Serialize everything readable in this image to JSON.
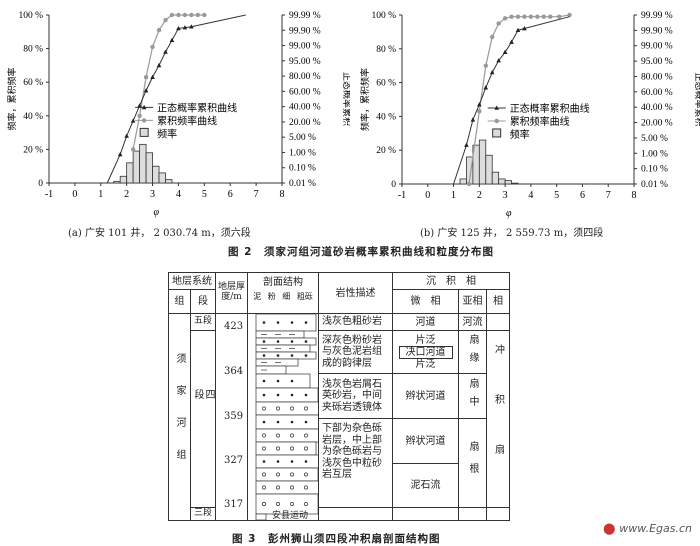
{
  "figure2": {
    "caption": "图 2　须家河组河道砂岩概率累积曲线和粒度分布图",
    "chart_data": [
      {
        "type": "bar+line",
        "subcaption": "(a) 广安 101 井， 2 030.74 m，须六段",
        "xlabel": "φ",
        "ylabel_left": "频率，累积频率",
        "ylabel_right": "正态概率累积",
        "xlim": [
          -1,
          8
        ],
        "xticks": [
          "-1",
          "0",
          "1",
          "2",
          "3",
          "4",
          "5",
          "6",
          "7",
          "8"
        ],
        "ylim": [
          0,
          100
        ],
        "yticks_left": [
          "0",
          "20 %",
          "40 %",
          "60 %",
          "80 %",
          "100 %"
        ],
        "yticks_right": [
          "0.01 %",
          "0.10 %",
          "1.00 %",
          "5.00 %",
          "20.00 %",
          "40.00 %",
          "60.00 %",
          "80.00 %",
          "95.00 %",
          "99.00 %",
          "99.90 %",
          "99.99 %"
        ],
        "legend": [
          "正态概率累积曲线",
          "累积频率曲线",
          "频率"
        ],
        "histogram": {
          "bin_width": 0.25,
          "x": [
            1.5,
            1.75,
            2,
            2.25,
            2.5,
            2.75,
            3,
            3.25,
            3.5
          ],
          "values": [
            1,
            4,
            12,
            19,
            23,
            18,
            10,
            6,
            2
          ]
        },
        "cumulative_frequency": {
          "x": [
            2.25,
            2.5,
            2.75,
            3,
            3.25,
            3.5,
            3.75,
            4,
            4.25,
            4.5,
            4.75,
            5
          ],
          "y": [
            20,
            40,
            63,
            81,
            91,
            97,
            100,
            100,
            100,
            100,
            100,
            100
          ]
        },
        "normal_probability": {
          "x": [
            1.25,
            1.75,
            2,
            2.25,
            2.5,
            2.75,
            3,
            3.25,
            3.5,
            3.75,
            4,
            4.25,
            4.5,
            6.6
          ],
          "y": [
            0,
            17,
            28,
            37,
            46,
            55,
            63,
            70,
            78,
            85,
            92,
            92.5,
            93,
            100
          ],
          "markers": [
            false,
            true,
            true,
            true,
            true,
            true,
            true,
            true,
            true,
            true,
            true,
            true,
            true,
            false
          ]
        }
      },
      {
        "type": "bar+line",
        "subcaption": "(b) 广安 125 井， 2 559.73 m，须四段",
        "xlabel": "φ",
        "ylabel_left": "频率，累积频率",
        "ylabel_right": "正态概率累积",
        "xlim": [
          -1,
          8
        ],
        "xticks": [
          "-1",
          "0",
          "1",
          "2",
          "3",
          "4",
          "5",
          "6",
          "7",
          "8"
        ],
        "ylim": [
          0,
          100
        ],
        "yticks_left": [
          "0",
          "20 %",
          "40 %",
          "60 %",
          "80 %",
          "100 %"
        ],
        "yticks_right": [
          "0.01 %",
          "0.10 %",
          "1.00 %",
          "5.00 %",
          "20.00 %",
          "40.00 %",
          "60.00 %",
          "80.00 %",
          "95.00 %",
          "99.00 %",
          "99.90 %",
          "99.99 %"
        ],
        "legend": [
          "正态概率累积曲线",
          "累积频率曲线",
          "频率"
        ],
        "histogram": {
          "bin_width": 0.25,
          "x": [
            1.25,
            1.5,
            1.75,
            2,
            2.25,
            2.5,
            2.75,
            3,
            3.25
          ],
          "values": [
            3,
            16,
            23,
            26,
            17,
            7,
            3,
            2,
            0.5
          ]
        },
        "cumulative_frequency": {
          "x": [
            1.6,
            2,
            2.25,
            2.5,
            2.75,
            3,
            3.25,
            3.5,
            3.75,
            4,
            4.25,
            4.5,
            4.75,
            5.1,
            5.5
          ],
          "y": [
            0,
            43,
            70,
            87,
            95,
            98,
            99,
            99,
            99,
            99,
            99,
            99,
            99,
            99,
            100
          ]
        },
        "normal_probability": {
          "x": [
            1,
            1.5,
            1.75,
            2,
            2.25,
            2.5,
            2.75,
            3,
            3.25,
            3.5,
            3.75,
            5.5
          ],
          "y": [
            0,
            23,
            38,
            47,
            57,
            66,
            73,
            78,
            84,
            91,
            92,
            99
          ],
          "markers": [
            false,
            true,
            true,
            true,
            true,
            true,
            true,
            true,
            true,
            true,
            true,
            false
          ]
        }
      }
    ]
  },
  "figure3": {
    "caption": "图 3　彭州狮山须四段冲积扇剖面结构图",
    "header": {
      "strat_system": "地层系统",
      "group": "组",
      "member": "段",
      "thickness": "地层厚度/m",
      "section": "剖面结构",
      "grain": [
        "泥",
        "粉",
        "细",
        "粗砾"
      ],
      "lithology": "岩性描述",
      "facies_group": "沉　积　相",
      "microfacies": "微　相",
      "subfacies": "亚相",
      "facies": "相"
    },
    "group_name": "须家河组",
    "members": [
      "五段",
      "四　段",
      "三段"
    ],
    "thickness": [
      "423",
      "364",
      "359",
      "327",
      "317"
    ],
    "unconformity": "安县运动",
    "lithology": [
      "浅灰色粗砂岩",
      "深灰色粉砂岩与灰色泥岩组成的韵律层",
      "浅灰色岩屑石英砂岩，中间夹砾岩透镜体",
      "下部为杂色砾岩层，中上部为杂色砾岩与浅灰色中粒砂岩互层"
    ],
    "microfacies": [
      "河道",
      "片泛",
      "决口河道",
      "片泛",
      "辫状河道",
      "辫状河道",
      "泥石流"
    ],
    "subfacies": [
      "河流",
      "扇缘",
      "扇中",
      "扇根"
    ],
    "facies": "冲积扇"
  },
  "watermark": "www.Egas.cn"
}
